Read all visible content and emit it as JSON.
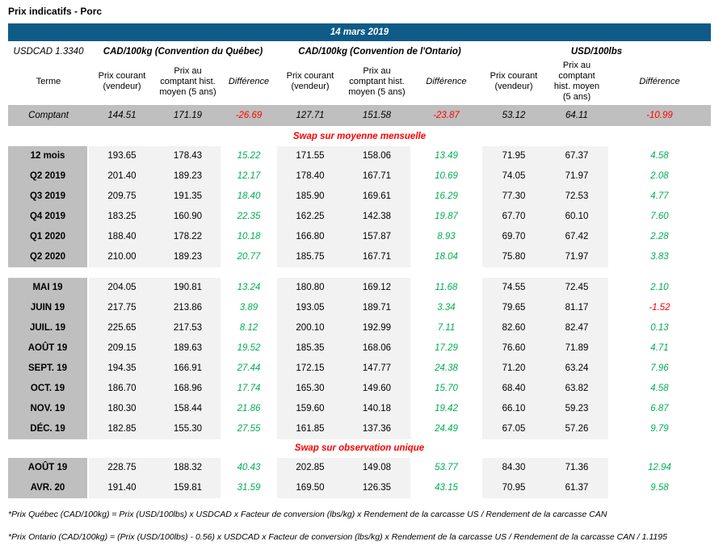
{
  "page_title": "Prix indicatifs - Porc",
  "colors": {
    "header_blue": "#0f5b87",
    "term_gray": "#bfbfbf",
    "cell_gray": "#f2f2f2",
    "positive_green": "#00b050",
    "negative_red": "#ff0000",
    "section_title_red": "#ff0000"
  },
  "header": {
    "date": "14 mars 2019",
    "fx_rate_label": "USDCAD 1.3340",
    "group_headers": [
      "CAD/100kg (Convention du Québec)",
      "CAD/100kg (Convention de l'Ontario)",
      "USD/100lbs"
    ],
    "term_header": "Terme",
    "column_headers": {
      "current": "Prix courant (vendeur)",
      "spot_avg": "Prix au comptant hist. moyen (5 ans)",
      "difference": "Différence"
    }
  },
  "spot_row": {
    "term": "Comptant",
    "values": [
      "144.51",
      "171.19",
      "-26.69",
      "127.71",
      "151.58",
      "-23.87",
      "53.12",
      "64.11",
      "-10.99"
    ]
  },
  "sections": [
    {
      "title": "Swap sur moyenne mensuelle",
      "blocks": [
        [
          {
            "term": "12 mois",
            "values": [
              "193.65",
              "178.43",
              "15.22",
              "171.55",
              "158.06",
              "13.49",
              "71.95",
              "67.37",
              "4.58"
            ]
          },
          {
            "term": "Q2 2019",
            "values": [
              "201.40",
              "189.23",
              "12.17",
              "178.40",
              "167.71",
              "10.69",
              "74.05",
              "71.97",
              "2.08"
            ]
          },
          {
            "term": "Q3 2019",
            "values": [
              "209.75",
              "191.35",
              "18.40",
              "185.90",
              "169.61",
              "16.29",
              "77.30",
              "72.53",
              "4.77"
            ]
          },
          {
            "term": "Q4 2019",
            "values": [
              "183.25",
              "160.90",
              "22.35",
              "162.25",
              "142.38",
              "19.87",
              "67.70",
              "60.10",
              "7.60"
            ]
          },
          {
            "term": "Q1 2020",
            "values": [
              "188.40",
              "178.22",
              "10.18",
              "166.80",
              "157.87",
              "8.93",
              "69.70",
              "67.42",
              "2.28"
            ]
          },
          {
            "term": "Q2 2020",
            "values": [
              "210.00",
              "189.23",
              "20.77",
              "185.75",
              "167.71",
              "18.04",
              "75.80",
              "71.97",
              "3.83"
            ]
          }
        ],
        [
          {
            "term": "MAI 19",
            "values": [
              "204.05",
              "190.81",
              "13.24",
              "180.80",
              "169.12",
              "11.68",
              "74.55",
              "72.45",
              "2.10"
            ]
          },
          {
            "term": "JUIN 19",
            "values": [
              "217.75",
              "213.86",
              "3.89",
              "193.05",
              "189.71",
              "3.34",
              "79.65",
              "81.17",
              "-1.52"
            ]
          },
          {
            "term": "JUIL. 19",
            "values": [
              "225.65",
              "217.53",
              "8.12",
              "200.10",
              "192.99",
              "7.11",
              "82.60",
              "82.47",
              "0.13"
            ]
          },
          {
            "term": "AOÛT 19",
            "values": [
              "209.15",
              "189.63",
              "19.52",
              "185.35",
              "168.06",
              "17.29",
              "76.60",
              "71.89",
              "4.71"
            ]
          },
          {
            "term": "SEPT. 19",
            "values": [
              "194.35",
              "166.91",
              "27.44",
              "172.15",
              "147.77",
              "24.38",
              "71.20",
              "63.24",
              "7.96"
            ]
          },
          {
            "term": "OCT. 19",
            "values": [
              "186.70",
              "168.96",
              "17.74",
              "165.30",
              "149.60",
              "15.70",
              "68.40",
              "63.82",
              "4.58"
            ]
          },
          {
            "term": "NOV. 19",
            "values": [
              "180.30",
              "158.44",
              "21.86",
              "159.60",
              "140.18",
              "19.42",
              "66.10",
              "59.23",
              "6.87"
            ]
          },
          {
            "term": "DÉC. 19",
            "values": [
              "182.85",
              "155.30",
              "27.55",
              "161.85",
              "137.36",
              "24.49",
              "67.05",
              "57.26",
              "9.79"
            ]
          }
        ]
      ]
    },
    {
      "title": "Swap sur observation unique",
      "blocks": [
        [
          {
            "term": "AOÛT 19",
            "values": [
              "228.75",
              "188.32",
              "40.43",
              "202.85",
              "149.08",
              "53.77",
              "84.30",
              "71.36",
              "12.94"
            ]
          },
          {
            "term": "AVR. 20",
            "values": [
              "191.40",
              "159.81",
              "31.59",
              "169.50",
              "126.35",
              "43.15",
              "70.95",
              "61.37",
              "9.58"
            ]
          }
        ]
      ]
    }
  ],
  "footnotes": [
    "*Prix Québec (CAD/100kg) = Prix (USD/100lbs) x USDCAD x Facteur de conversion (lbs/kg) x Rendement de la carcasse US / Rendement de la carcasse CAN",
    "*Prix Ontario (CAD/100kg) = (Prix (USD/100lbs) - 0.56) x USDCAD x Facteur de conversion (lbs/kg) x Rendement de la carcasse US / Rendement de la carcasse CAN / 1.1195"
  ]
}
